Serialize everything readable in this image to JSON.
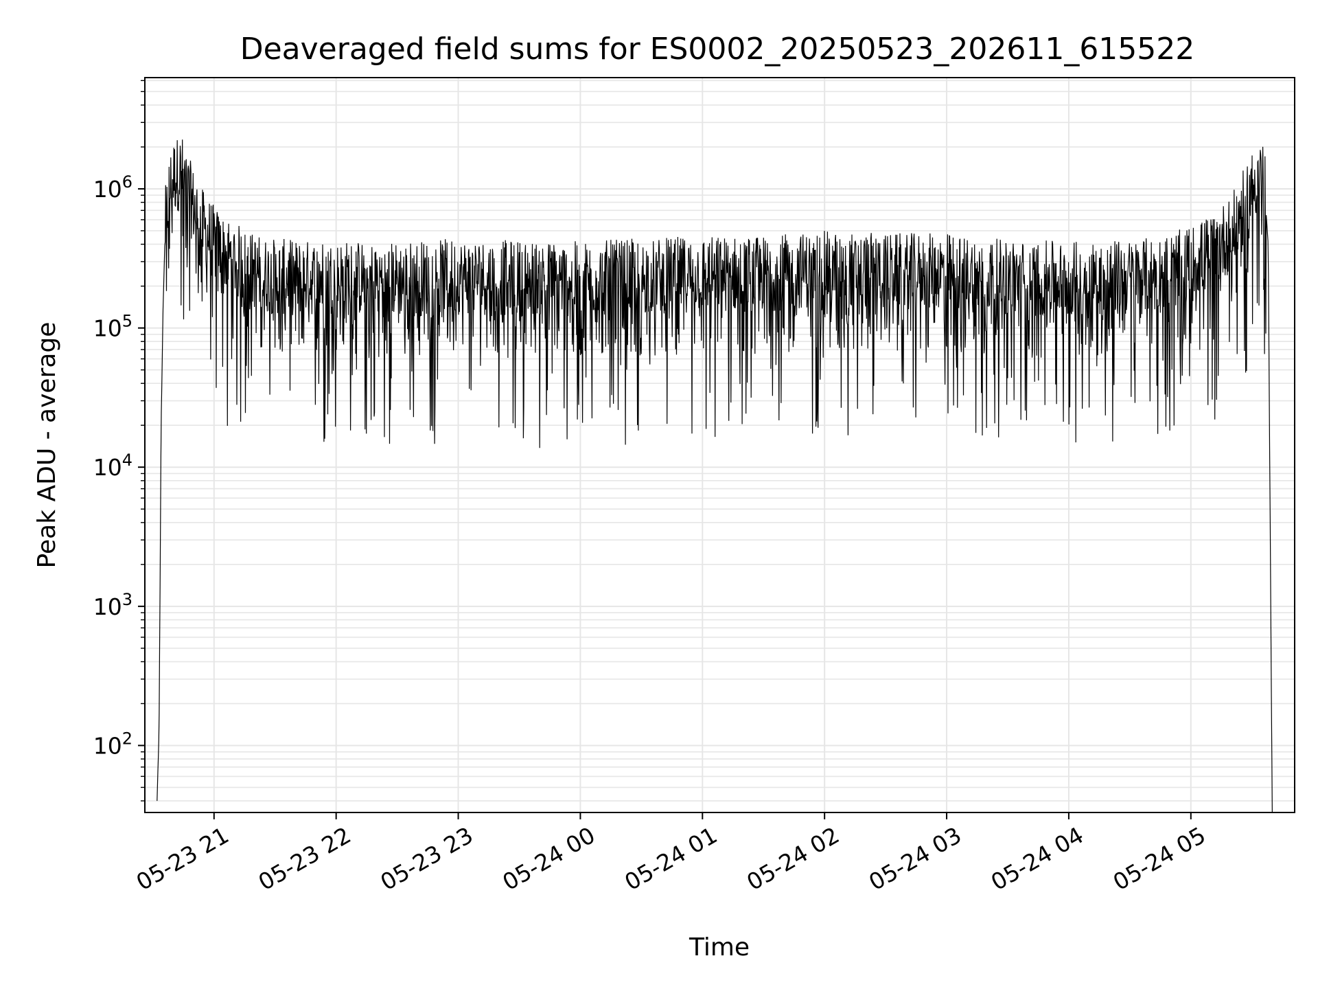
{
  "chart_data": {
    "type": "line",
    "title": "Deaveraged field sums for ES0002_20250523_202611_615522",
    "xlabel": "Time",
    "ylabel": "Peak ADU - average",
    "y_scale": "log",
    "ylim": [
      33,
      6300000
    ],
    "xlim": [
      "2025-05-23 20:26",
      "2025-05-24 05:51"
    ],
    "x_ticks": [
      {
        "value": "2025-05-23 21:00",
        "label": "05-23 21"
      },
      {
        "value": "2025-05-23 22:00",
        "label": "05-23 22"
      },
      {
        "value": "2025-05-23 23:00",
        "label": "05-23 23"
      },
      {
        "value": "2025-05-24 00:00",
        "label": "05-24 00"
      },
      {
        "value": "2025-05-24 01:00",
        "label": "05-24 01"
      },
      {
        "value": "2025-05-24 02:00",
        "label": "05-24 02"
      },
      {
        "value": "2025-05-24 03:00",
        "label": "05-24 03"
      },
      {
        "value": "2025-05-24 04:00",
        "label": "05-24 04"
      },
      {
        "value": "2025-05-24 05:00",
        "label": "05-24 05"
      }
    ],
    "y_ticks": [
      {
        "value": 100,
        "base": "10",
        "exp": "2"
      },
      {
        "value": 1000,
        "base": "10",
        "exp": "3"
      },
      {
        "value": 10000,
        "base": "10",
        "exp": "4"
      },
      {
        "value": 100000,
        "base": "10",
        "exp": "5"
      },
      {
        "value": 1000000,
        "base": "10",
        "exp": "6"
      }
    ],
    "grid": "both-major-minor",
    "line_color": "#000000",
    "grid_color": "#e6e6e6",
    "series": [
      {
        "x": [
          "2025-05-23 20:32",
          "2025-05-23 20:33",
          "2025-05-23 20:34",
          "2025-05-23 20:35",
          "2025-05-23 20:36",
          "2025-05-23 20:38",
          "2025-05-23 20:40",
          "2025-05-23 20:44",
          "2025-05-23 20:47",
          "2025-05-23 20:50",
          "2025-05-23 20:53",
          "2025-05-23 20:55",
          "2025-05-23 20:58",
          "2025-05-23 21:00",
          "2025-05-23 21:05",
          "2025-05-23 21:10",
          "2025-05-23 21:15",
          "2025-05-23 21:20",
          "2025-05-23 21:25",
          "2025-05-23 21:30",
          "2025-05-23 21:40",
          "2025-05-23 22:00",
          "2025-05-23 22:30",
          "2025-05-23 23:00",
          "2025-05-23 23:30",
          "2025-05-24 00:00",
          "2025-05-24 00:30",
          "2025-05-24 01:00",
          "2025-05-24 01:30",
          "2025-05-24 02:00",
          "2025-05-24 02:30",
          "2025-05-24 03:00",
          "2025-05-24 03:30",
          "2025-05-24 04:00",
          "2025-05-24 04:30",
          "2025-05-24 04:45",
          "2025-05-24 05:00",
          "2025-05-24 05:10",
          "2025-05-24 05:20",
          "2025-05-24 05:28",
          "2025-05-24 05:33",
          "2025-05-24 05:36",
          "2025-05-24 05:38",
          "2025-05-24 05:40"
        ],
        "values": [
          40,
          130,
          20000,
          150000,
          500000,
          900000,
          1150000,
          1250000,
          900000,
          700000,
          550000,
          480000,
          420000,
          380000,
          320000,
          290000,
          260000,
          240000,
          225000,
          220000,
          215000,
          215000,
          210000,
          220000,
          215000,
          210000,
          220000,
          230000,
          230000,
          250000,
          240000,
          240000,
          215000,
          210000,
          215000,
          230000,
          270000,
          330000,
          450000,
          800000,
          1200000,
          1100000,
          400000,
          30
        ]
      }
    ]
  }
}
